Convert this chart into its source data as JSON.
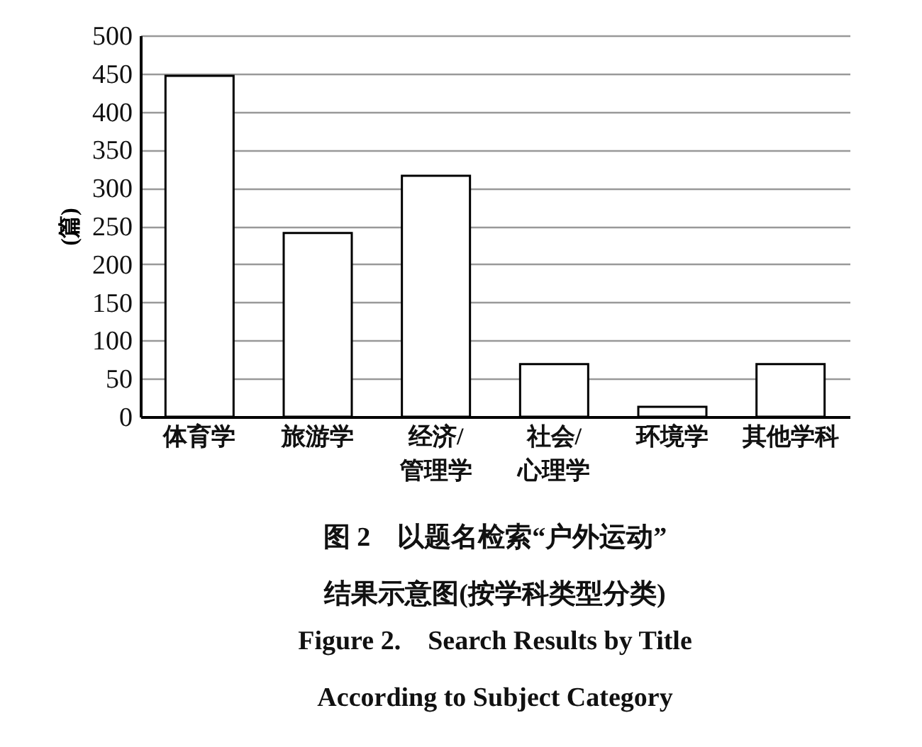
{
  "chart_data": {
    "type": "bar",
    "title": "图 2　以题名检索“户外运动”结果示意图(按学科类型分类)",
    "subtitle": "Figure 2.　Search Results by Title According to Subject Category",
    "ylabel": "(篇)",
    "categories": [
      "体育学",
      "旅游学",
      "经济/管理学",
      "社会/心理学",
      "环境学",
      "其他学科"
    ],
    "values": [
      447,
      241,
      316,
      69,
      13,
      69
    ],
    "color": "#ffffff",
    "ylim": [
      0,
      500
    ],
    "yticks": [
      0,
      50,
      100,
      150,
      200,
      250,
      300,
      350,
      400,
      450,
      500
    ],
    "grid": "y"
  }
}
